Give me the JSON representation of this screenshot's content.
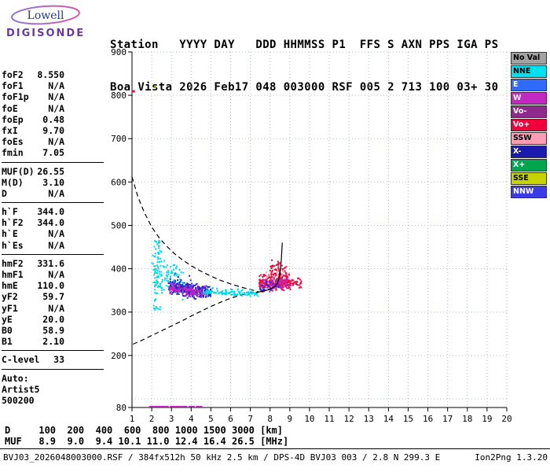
{
  "logo": {
    "top": "Lowell",
    "bottom": "DIGISONDE"
  },
  "header": {
    "line1": "Station   YYYY DAY   DDD HHMMSS P1  FFS S AXN PPS IGA PS",
    "line2": "Boa Vista 2026 Feb17 048 003000 RSF 005 2 713 100 03+ 30"
  },
  "params": {
    "groups": [
      {
        "rows": [
          [
            "foF2",
            "8.550"
          ],
          [
            "foF1",
            "N/A"
          ],
          [
            "foF1p",
            "N/A"
          ],
          [
            "foE",
            "N/A"
          ],
          [
            "foEp",
            "0.48"
          ],
          [
            "fxI",
            "9.70"
          ],
          [
            "foEs",
            "N/A"
          ],
          [
            "fmin",
            "7.05"
          ]
        ]
      },
      {
        "rows": [
          [
            "MUF(D)",
            "26.55"
          ],
          [
            "M(D)",
            "3.10"
          ],
          [
            "D",
            "N/A"
          ]
        ]
      },
      {
        "rows": [
          [
            "h`F",
            "344.0"
          ],
          [
            "h`F2",
            "344.0"
          ],
          [
            "h`E",
            "N/A"
          ],
          [
            "h`Es",
            "N/A"
          ]
        ]
      },
      {
        "rows": [
          [
            "hmF2",
            "331.6"
          ],
          [
            "hmF1",
            "N/A"
          ],
          [
            "hmE",
            "110.0"
          ],
          [
            "yF2",
            "59.7"
          ],
          [
            "yF1",
            "N/A"
          ],
          [
            "yE",
            "20.0"
          ],
          [
            "B0",
            "58.9"
          ],
          [
            "B1",
            "2.10"
          ]
        ]
      },
      {
        "rows": [
          [
            "C-level",
            "33"
          ]
        ]
      },
      {
        "rows": [
          [
            "Auto:",
            ""
          ],
          [
            "Artist5",
            ""
          ],
          [
            "500200",
            ""
          ]
        ]
      }
    ]
  },
  "legend": {
    "items": [
      {
        "label": "No Val",
        "color": "#a2a2a2",
        "text": "#000000"
      },
      {
        "label": "NNE",
        "color": "#00e0f0",
        "text": "#000000"
      },
      {
        "label": "E",
        "color": "#2f6bff",
        "text": "#ffffff"
      },
      {
        "label": "W",
        "color": "#c328c3",
        "text": "#ffffff"
      },
      {
        "label": "Vo-",
        "color": "#8e2a8e",
        "text": "#ffffff"
      },
      {
        "label": "Vo+",
        "color": "#f1003c",
        "text": "#ffffff"
      },
      {
        "label": "SSW",
        "color": "#ff9db4",
        "text": "#000000"
      },
      {
        "label": "X-",
        "color": "#1a1aae",
        "text": "#ffffff"
      },
      {
        "label": "X+",
        "color": "#00a550",
        "text": "#ffffff"
      },
      {
        "label": "SSE",
        "color": "#c6d300",
        "text": "#000000"
      },
      {
        "label": "NNW",
        "color": "#3a3ae6",
        "text": "#ffffff"
      }
    ]
  },
  "chart_data": {
    "type": "scatter",
    "title": "",
    "xlabel": "",
    "ylabel": "",
    "xlim": [
      1,
      20
    ],
    "ylim": [
      80,
      900
    ],
    "grid": "dotted",
    "grid_color": "#b5bdb5",
    "x_ticks": [
      1,
      2,
      3,
      4,
      5,
      6,
      7,
      8,
      9,
      10,
      11,
      12,
      13,
      14,
      15,
      16,
      17,
      18,
      19,
      20
    ],
    "x_gridlines": [
      2,
      3,
      4,
      5,
      6,
      7,
      8,
      9,
      10,
      11,
      12,
      13,
      14,
      15,
      16,
      17,
      18,
      19,
      20
    ],
    "y_ticks": [
      900,
      800,
      700,
      600,
      500,
      400,
      300,
      200,
      80
    ],
    "y_gridlines": [
      100,
      200,
      300,
      400,
      500,
      600,
      700,
      800,
      900
    ],
    "clusters": [
      {
        "name": "nne-strip",
        "color": "#00d9e8",
        "n": 70,
        "x": [
          2.1,
          2.5
        ],
        "yc": [
          385,
          385
        ],
        "spread": 80,
        "dist": "uni"
      },
      {
        "name": "nne-left-blob",
        "color": "#00d9e8",
        "n": 110,
        "x": [
          2.0,
          3.6
        ],
        "yc": [
          390,
          368
        ],
        "spread": 48,
        "dist": "tri"
      },
      {
        "name": "nnw-band",
        "color": "#2a2ac8",
        "n": 300,
        "x": [
          2.85,
          5.0
        ],
        "yc": [
          358,
          344
        ],
        "spread": 16,
        "dist": "tri"
      },
      {
        "name": "nnw-scatter",
        "color": "#2a2ac8",
        "n": 70,
        "x": [
          2.9,
          4.3
        ],
        "yc": [
          368,
          352
        ],
        "spread": 32,
        "dist": "tri"
      },
      {
        "name": "w-left",
        "color": "#c224c2",
        "n": 110,
        "x": [
          2.9,
          4.7
        ],
        "yc": [
          356,
          346
        ],
        "spread": 15,
        "dist": "tri"
      },
      {
        "name": "nne-trace",
        "color": "#00d9e8",
        "n": 95,
        "x": [
          4.6,
          7.4
        ],
        "yc": [
          346,
          341
        ],
        "spread": 6,
        "dist": "tri"
      },
      {
        "name": "nne-trace-upper",
        "color": "#00d9e8",
        "n": 25,
        "x": [
          5.0,
          7.3
        ],
        "yc": [
          352,
          347
        ],
        "spread": 11,
        "dist": "tri"
      },
      {
        "name": "vo-plus-main",
        "color": "#e81145",
        "n": 290,
        "x": [
          7.45,
          9.05
        ],
        "yc": [
          366,
          372
        ],
        "spread": 22,
        "dist": "tri"
      },
      {
        "name": "vo-plus-top",
        "color": "#e81145",
        "n": 60,
        "x": [
          8.0,
          8.85
        ],
        "yc": [
          402,
          398
        ],
        "spread": 20,
        "dist": "tri"
      },
      {
        "name": "w-right",
        "color": "#c224c2",
        "n": 85,
        "x": [
          7.5,
          8.9
        ],
        "yc": [
          360,
          368
        ],
        "spread": 18,
        "dist": "tri"
      },
      {
        "name": "vo-plus-right",
        "color": "#e81145",
        "n": 40,
        "x": [
          8.95,
          9.6
        ],
        "yc": [
          372,
          366
        ],
        "spread": 13,
        "dist": "tri"
      },
      {
        "name": "nnw-right",
        "color": "#2a2ac8",
        "n": 25,
        "x": [
          7.5,
          8.6
        ],
        "yc": [
          358,
          364
        ],
        "spread": 14,
        "dist": "tri"
      },
      {
        "name": "ssw-right",
        "color": "#ff9db4",
        "n": 18,
        "x": [
          7.8,
          8.8
        ],
        "yc": [
          382,
          386
        ],
        "spread": 18,
        "dist": "tri"
      }
    ],
    "curves": [
      {
        "name": "transmission-curve-upper",
        "style": "dashed",
        "color": "#000000",
        "points": [
          [
            1.0,
            612
          ],
          [
            1.3,
            566
          ],
          [
            1.6,
            532
          ],
          [
            2.0,
            496
          ],
          [
            2.4,
            470
          ],
          [
            2.8,
            450
          ],
          [
            3.2,
            433
          ],
          [
            3.6,
            419
          ],
          [
            4.0,
            407
          ],
          [
            4.5,
            394
          ],
          [
            5.0,
            383
          ],
          [
            5.5,
            373
          ],
          [
            6.0,
            365
          ],
          [
            6.5,
            358
          ],
          [
            7.0,
            352
          ],
          [
            7.4,
            347
          ]
        ]
      },
      {
        "name": "transmission-curve-lower",
        "style": "dashed",
        "color": "#000000",
        "points": [
          [
            1.05,
            226
          ],
          [
            1.5,
            235
          ],
          [
            2.0,
            246
          ],
          [
            2.5,
            257
          ],
          [
            3.0,
            268
          ],
          [
            3.5,
            279
          ],
          [
            4.0,
            291
          ],
          [
            4.5,
            302
          ],
          [
            5.0,
            313
          ],
          [
            5.5,
            323
          ],
          [
            6.0,
            332
          ],
          [
            6.5,
            339
          ],
          [
            7.0,
            344
          ],
          [
            7.5,
            347
          ]
        ]
      },
      {
        "name": "f-trace-fit",
        "style": "solid",
        "color": "#000000",
        "points": [
          [
            7.3,
            345
          ],
          [
            7.6,
            348
          ],
          [
            7.9,
            351
          ],
          [
            8.1,
            355
          ],
          [
            8.25,
            360
          ],
          [
            8.38,
            368
          ],
          [
            8.47,
            380
          ],
          [
            8.53,
            398
          ],
          [
            8.57,
            420
          ],
          [
            8.6,
            445
          ],
          [
            8.62,
            460
          ]
        ]
      }
    ],
    "bottom_marks": {
      "y": 82,
      "color": "#c224c2",
      "xs": [
        1.95,
        2.08,
        2.22,
        2.38,
        2.5,
        2.62,
        2.78,
        3.0,
        3.12,
        3.28,
        3.42,
        3.58,
        3.72,
        3.95,
        4.1,
        4.32,
        4.48
      ]
    },
    "points": [
      {
        "name": "stray-echo-green",
        "x": 2.15,
        "y": 820,
        "color": "#8aa81e",
        "w": 3,
        "h": 3
      },
      {
        "name": "stray-echo-red-axis",
        "x": 1.03,
        "y": 810,
        "color": "#e81145",
        "w": 4,
        "h": 3
      }
    ]
  },
  "muf_table": {
    "rows": [
      {
        "label": "D",
        "values": [
          "100",
          "200",
          "400",
          "600",
          "800",
          "1000",
          "1500",
          "3000"
        ],
        "unit": "[km]"
      },
      {
        "label": "MUF",
        "values": [
          "8.9",
          "9.0",
          "9.4",
          "10.1",
          "11.0",
          "12.4",
          "16.4",
          "26.5"
        ],
        "unit": "[MHz]"
      }
    ]
  },
  "footer": {
    "left": "BVJ03_2026048003000.RSF / 384fx512h 50 kHz 2.5 km / DPS-4D BVJ03 003 / 2.8 N 299.3 E",
    "right": "Ion2Png 1.3.20"
  }
}
